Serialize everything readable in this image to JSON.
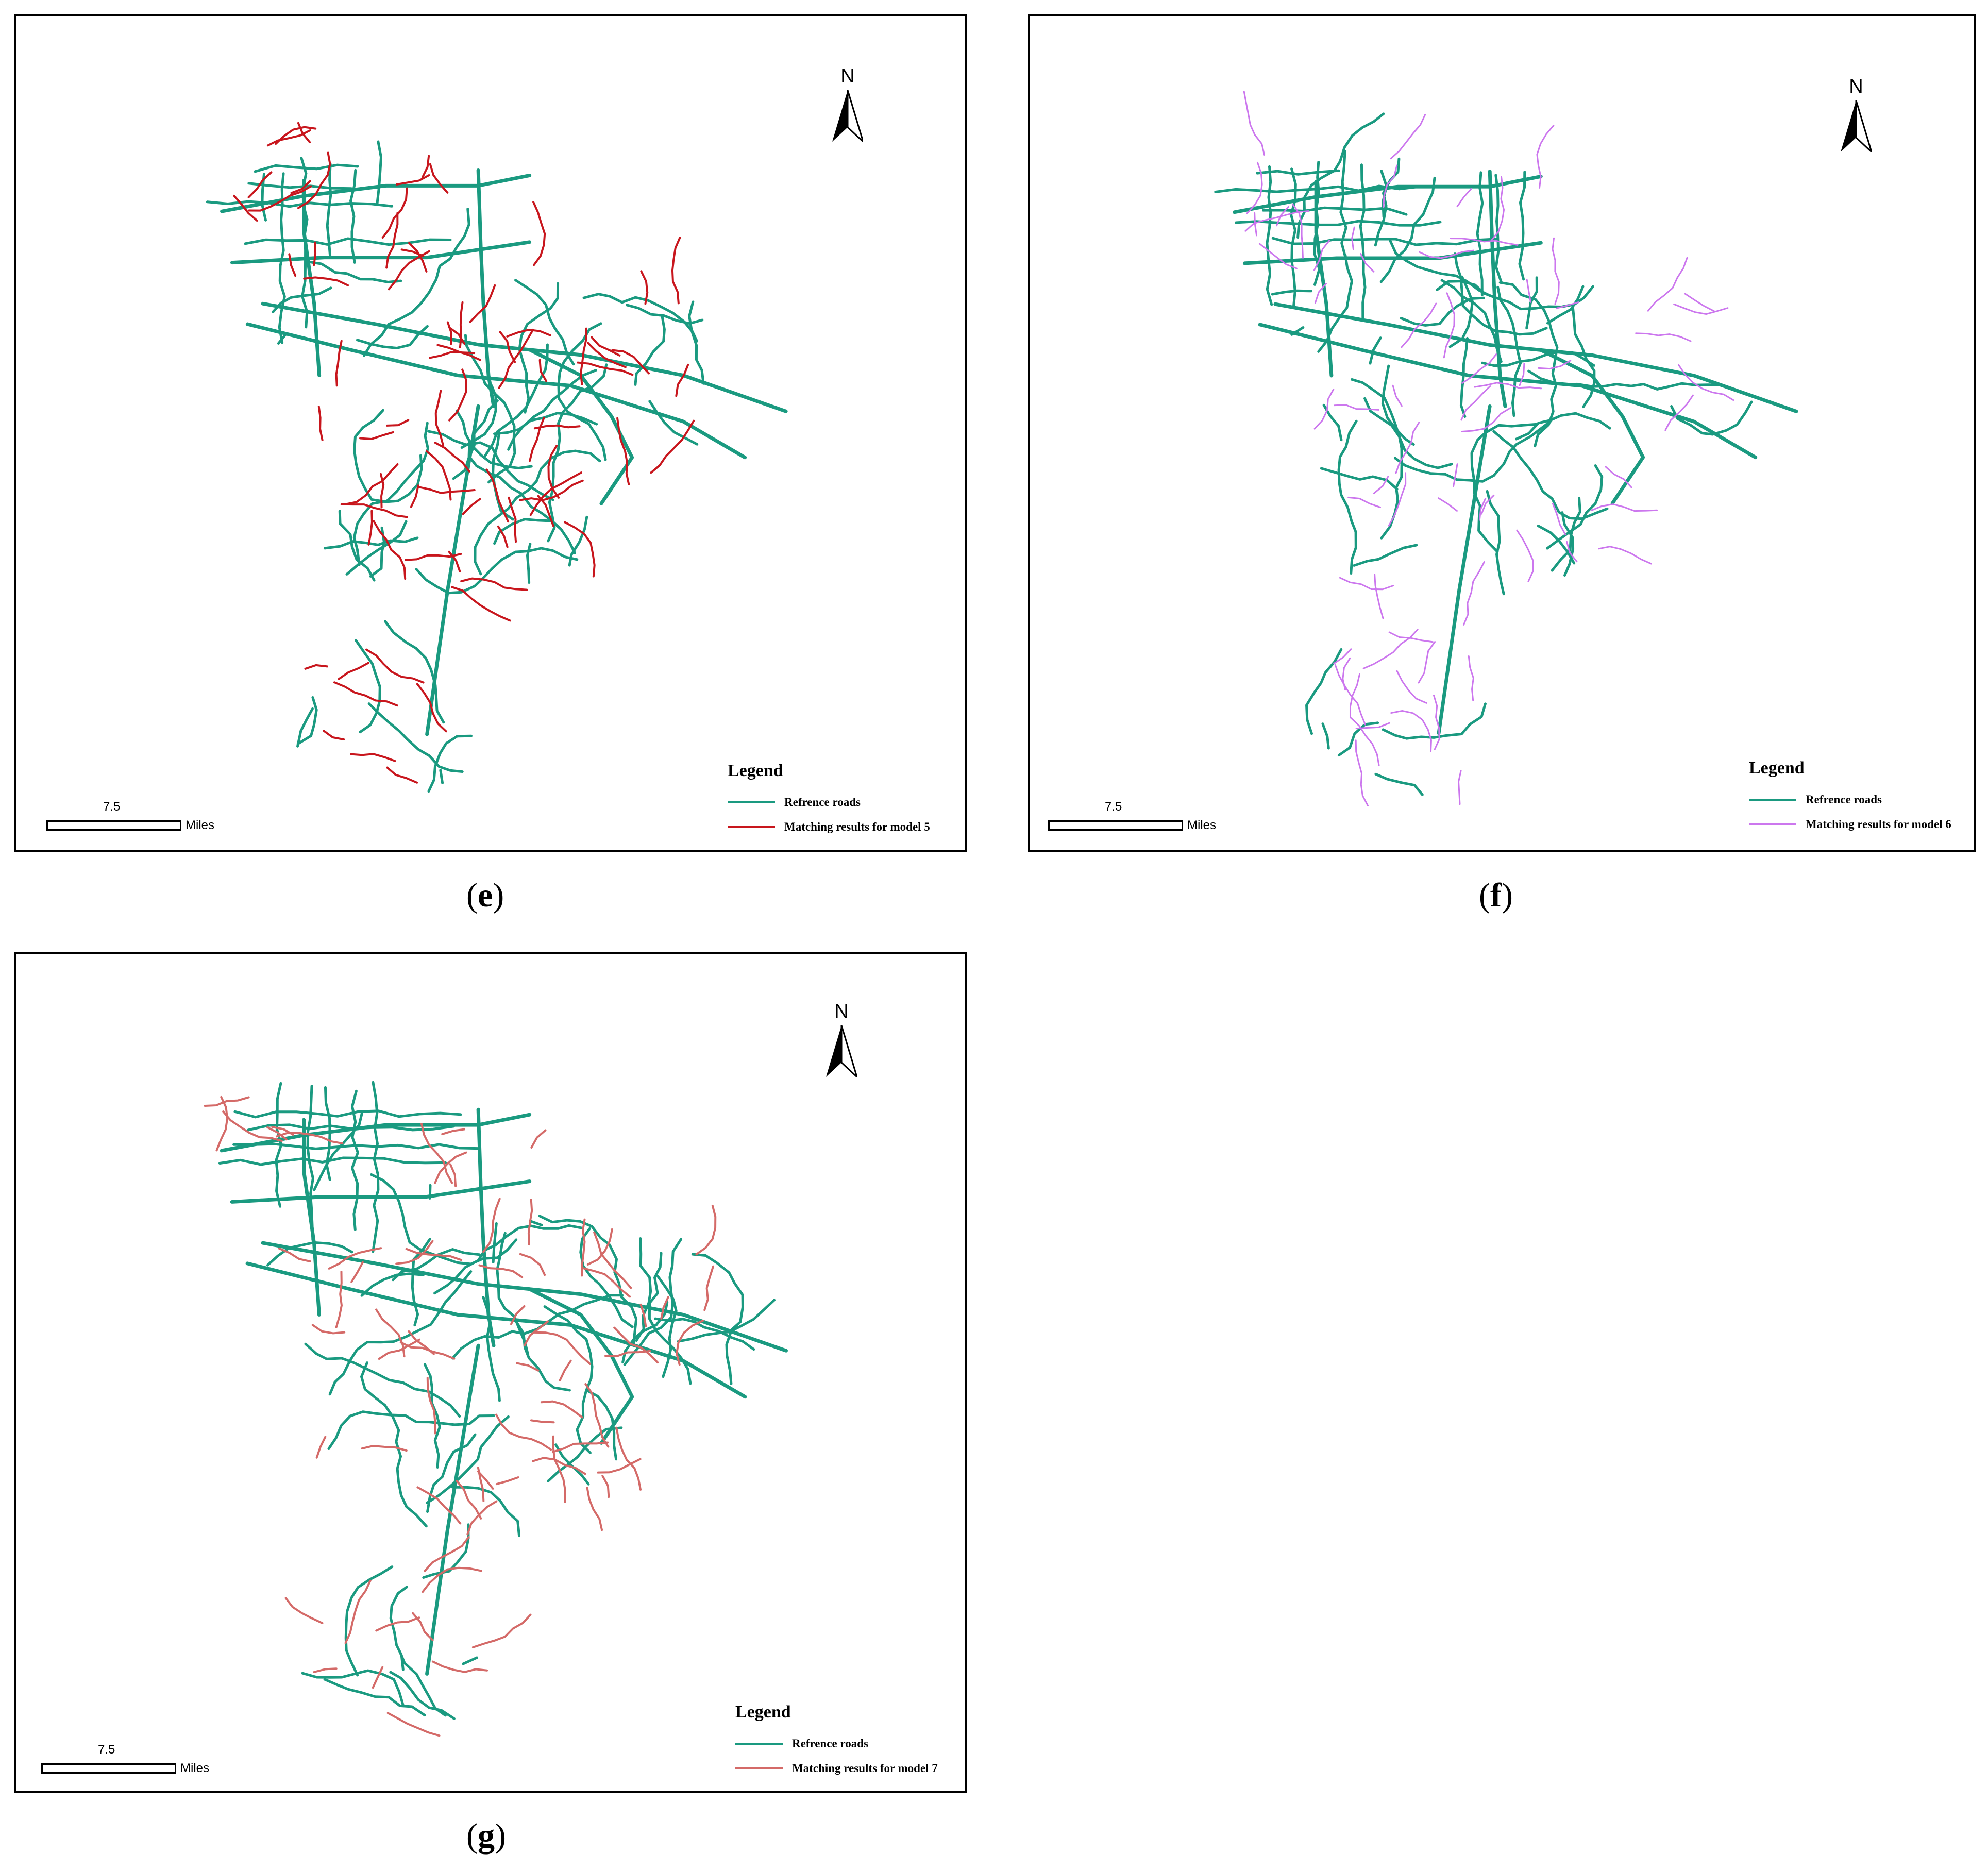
{
  "colors": {
    "reference_roads": "#1a9a80",
    "model5": "#c8161d",
    "model6": "#cc77ee",
    "model7": "#d46a68"
  },
  "north_label": "N",
  "scale": {
    "value": "7.5",
    "unit": "Miles"
  },
  "panels": [
    {
      "id": "e",
      "caption": "e",
      "legend": {
        "title": "Legend",
        "reference_label": "Refrence roads",
        "match_label": "Matching results for model 5"
      },
      "match_color_key": "model5"
    },
    {
      "id": "f",
      "caption": "f",
      "legend": {
        "title": "Legend",
        "reference_label": "Refrence roads",
        "match_label": "Matching results for model 6"
      },
      "match_color_key": "model6"
    },
    {
      "id": "g",
      "caption": "g",
      "legend": {
        "title": "Legend",
        "reference_label": "Refrence roads",
        "match_label": "Matching results for model 7"
      },
      "match_color_key": "model7"
    }
  ]
}
